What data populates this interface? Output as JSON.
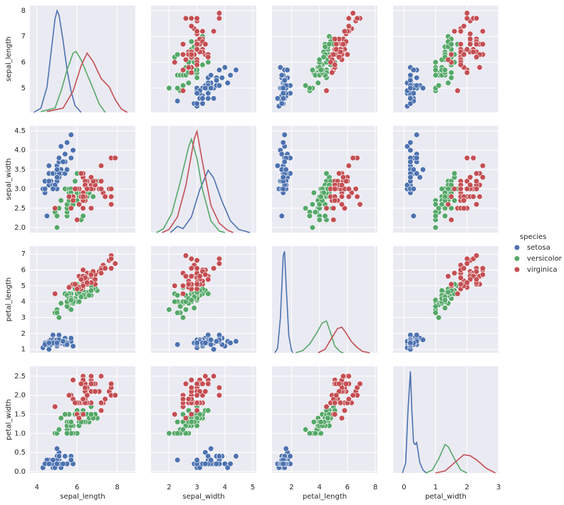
{
  "chart_data": {
    "type": "pairplot",
    "variables": [
      "sepal_length",
      "sepal_width",
      "petal_length",
      "petal_width"
    ],
    "legend_title": "species",
    "grid": true,
    "axes": {
      "sepal_length": {
        "xlim": [
          3.65,
          8.9
        ],
        "xticks": [
          4,
          6,
          8
        ],
        "ylim": [
          4.06,
          8.19
        ],
        "yticks": [
          5,
          6,
          7,
          8
        ],
        "kde_ylim": [
          0,
          1.26
        ]
      },
      "sepal_width": {
        "xlim": [
          1.35,
          5.13
        ],
        "xticks": [
          2,
          3,
          4,
          5
        ],
        "ylim": [
          1.87,
          4.63
        ],
        "yticks": [
          {
            "value": 2,
            "label": "2.0"
          },
          2.5,
          {
            "value": 3,
            "label": "3.0"
          },
          3.5,
          {
            "value": 4,
            "label": "4.0"
          },
          4.5
        ],
        "kde_ylim": [
          0,
          1.37
        ]
      },
      "petal_length": {
        "xlim": [
          0.6,
          8.15
        ],
        "xticks": [
          2,
          4,
          6,
          8
        ],
        "ylim": [
          0.78,
          7.5
        ],
        "yticks": [
          1,
          2,
          3,
          4,
          5,
          6,
          7
        ],
        "kde_ylim": [
          0,
          2.42
        ]
      },
      "petal_width": {
        "xlim": [
          -0.35,
          3.0
        ],
        "xticks": [
          0,
          1,
          2,
          3
        ],
        "ylim": [
          -0.04,
          2.76
        ],
        "yticks": [
          {
            "value": 0,
            "label": "0.0"
          },
          0.5,
          {
            "value": 1,
            "label": "1.0"
          },
          1.5,
          {
            "value": 2,
            "label": "2.0"
          },
          2.5
        ],
        "kde_ylim": [
          0,
          5.25
        ]
      }
    },
    "series": [
      {
        "name": "setosa",
        "color": "#4c72b0",
        "sepal_length": [
          5.1,
          4.9,
          4.7,
          4.6,
          5.0,
          5.4,
          4.6,
          5.0,
          4.4,
          4.9,
          5.4,
          4.8,
          4.8,
          4.3,
          5.8,
          5.7,
          5.4,
          5.1,
          5.7,
          5.1,
          5.4,
          5.1,
          4.6,
          5.1,
          4.8,
          5.0,
          5.0,
          5.2,
          5.2,
          4.7,
          4.8,
          5.4,
          5.2,
          5.5,
          4.9,
          5.0,
          5.5,
          4.9,
          4.4,
          5.1,
          5.0,
          4.5,
          4.4,
          5.0,
          5.1,
          4.8,
          5.1,
          4.6,
          5.3,
          5.0
        ],
        "sepal_width": [
          3.5,
          3.0,
          3.2,
          3.1,
          3.6,
          3.9,
          3.4,
          3.4,
          2.9,
          3.1,
          3.7,
          3.4,
          3.0,
          3.0,
          4.0,
          4.4,
          3.9,
          3.5,
          3.8,
          3.8,
          3.4,
          3.7,
          3.6,
          3.3,
          3.4,
          3.0,
          3.4,
          3.5,
          3.4,
          3.2,
          3.1,
          3.4,
          4.1,
          4.2,
          3.1,
          3.2,
          3.5,
          3.1,
          3.0,
          3.4,
          3.5,
          2.3,
          3.2,
          3.5,
          3.8,
          3.0,
          3.8,
          3.2,
          3.7,
          3.3
        ],
        "petal_length": [
          1.4,
          1.4,
          1.3,
          1.5,
          1.4,
          1.7,
          1.4,
          1.5,
          1.4,
          1.5,
          1.5,
          1.6,
          1.4,
          1.1,
          1.2,
          1.5,
          1.3,
          1.4,
          1.7,
          1.5,
          1.7,
          1.5,
          1.0,
          1.7,
          1.9,
          1.6,
          1.6,
          1.5,
          1.4,
          1.6,
          1.6,
          1.5,
          1.5,
          1.4,
          1.5,
          1.2,
          1.3,
          1.5,
          1.3,
          1.5,
          1.3,
          1.3,
          1.3,
          1.6,
          1.9,
          1.4,
          1.6,
          1.4,
          1.5,
          1.4
        ],
        "petal_width": [
          0.2,
          0.2,
          0.2,
          0.2,
          0.2,
          0.4,
          0.3,
          0.2,
          0.2,
          0.1,
          0.2,
          0.2,
          0.1,
          0.1,
          0.2,
          0.4,
          0.4,
          0.3,
          0.3,
          0.3,
          0.2,
          0.4,
          0.2,
          0.5,
          0.2,
          0.2,
          0.4,
          0.2,
          0.2,
          0.2,
          0.2,
          0.4,
          0.1,
          0.2,
          0.1,
          0.2,
          0.2,
          0.1,
          0.2,
          0.2,
          0.3,
          0.3,
          0.2,
          0.6,
          0.4,
          0.3,
          0.2,
          0.2,
          0.2,
          0.2
        ],
        "kde": {
          "sepal_length": {
            "x": [
              3.85,
              4.2,
              4.5,
              4.7,
              4.9,
              5.0,
              5.1,
              5.3,
              5.5,
              5.7,
              5.9,
              6.2
            ],
            "density": [
              0,
              0.05,
              0.3,
              0.7,
              1.1,
              1.2,
              1.15,
              0.85,
              0.5,
              0.25,
              0.08,
              0
            ]
          },
          "sepal_width": {
            "x": [
              2.05,
              2.3,
              2.5,
              2.8,
              3.1,
              3.4,
              3.6,
              3.9,
              4.2,
              4.5,
              4.9
            ],
            "density": [
              0,
              0.08,
              0.05,
              0.2,
              0.55,
              0.8,
              0.7,
              0.4,
              0.15,
              0.04,
              0
            ]
          },
          "petal_length": {
            "x": [
              0.8,
              1.0,
              1.2,
              1.4,
              1.5,
              1.6,
              1.8,
              2.0,
              2.1
            ],
            "density": [
              0,
              0.1,
              0.8,
              2.2,
              2.3,
              1.6,
              0.4,
              0.05,
              0
            ]
          },
          "petal_width": {
            "x": [
              -0.05,
              0.05,
              0.12,
              0.2,
              0.25,
              0.3,
              0.35,
              0.4,
              0.5,
              0.6,
              0.7
            ],
            "density": [
              0,
              0.5,
              3,
              5,
              3,
              1.5,
              1.4,
              1.5,
              0.5,
              0.15,
              0
            ]
          }
        }
      },
      {
        "name": "versicolor",
        "color": "#55a868",
        "sepal_length": [
          7.0,
          6.4,
          6.9,
          5.5,
          6.5,
          5.7,
          6.3,
          4.9,
          6.6,
          5.2,
          5.0,
          5.9,
          6.0,
          6.1,
          5.6,
          6.7,
          5.6,
          5.8,
          6.2,
          5.6,
          5.9,
          6.1,
          6.3,
          6.1,
          6.4,
          6.6,
          6.8,
          6.7,
          6.0,
          5.7,
          5.5,
          5.5,
          5.8,
          6.0,
          5.4,
          6.0,
          6.7,
          6.3,
          5.6,
          5.5,
          5.5,
          6.1,
          5.8,
          5.0,
          5.6,
          5.7,
          5.7,
          6.2,
          5.1,
          5.7
        ],
        "sepal_width": [
          3.2,
          3.2,
          3.1,
          2.3,
          2.8,
          2.8,
          3.3,
          2.4,
          2.9,
          2.7,
          2.0,
          3.0,
          2.2,
          2.9,
          2.9,
          3.1,
          3.0,
          2.7,
          2.2,
          2.5,
          3.2,
          2.8,
          2.5,
          2.8,
          2.9,
          3.0,
          2.8,
          3.0,
          2.9,
          2.6,
          2.4,
          2.4,
          2.7,
          2.7,
          3.0,
          3.4,
          3.1,
          2.3,
          3.0,
          2.5,
          2.6,
          3.0,
          2.6,
          2.3,
          2.7,
          3.0,
          2.9,
          2.9,
          2.5,
          2.8
        ],
        "petal_length": [
          4.7,
          4.5,
          4.9,
          4.0,
          4.6,
          4.5,
          4.7,
          3.3,
          4.6,
          3.9,
          3.5,
          4.2,
          4.0,
          4.7,
          3.6,
          4.4,
          4.5,
          4.1,
          4.5,
          3.9,
          4.8,
          4.0,
          4.9,
          4.7,
          4.3,
          4.4,
          4.8,
          5.0,
          4.5,
          3.5,
          3.8,
          3.7,
          3.9,
          5.1,
          4.5,
          4.5,
          4.7,
          4.4,
          4.1,
          4.0,
          4.4,
          4.6,
          4.0,
          3.3,
          4.2,
          4.2,
          4.2,
          4.3,
          3.0,
          4.1
        ],
        "petal_width": [
          1.4,
          1.5,
          1.5,
          1.3,
          1.5,
          1.3,
          1.6,
          1.0,
          1.3,
          1.4,
          1.0,
          1.5,
          1.0,
          1.4,
          1.3,
          1.4,
          1.5,
          1.0,
          1.5,
          1.1,
          1.8,
          1.3,
          1.5,
          1.2,
          1.3,
          1.4,
          1.4,
          1.7,
          1.5,
          1.0,
          1.1,
          1.0,
          1.2,
          1.6,
          1.5,
          1.6,
          1.5,
          1.3,
          1.3,
          1.3,
          1.2,
          1.4,
          1.2,
          1.0,
          1.3,
          1.2,
          1.3,
          1.3,
          1.1,
          1.3
        ],
        "kde": {
          "sepal_length": {
            "x": [
              4.2,
              4.9,
              5.2,
              5.5,
              5.8,
              5.95,
              6.2,
              6.5,
              6.8,
              7.1,
              7.4
            ],
            "density": [
              0.01,
              0.05,
              0.25,
              0.5,
              0.7,
              0.72,
              0.62,
              0.45,
              0.28,
              0.1,
              0
            ]
          },
          "sepal_width": {
            "x": [
              1.55,
              1.8,
              2.1,
              2.4,
              2.7,
              2.8,
              3.0,
              3.2,
              3.5,
              3.8,
              4.0
            ],
            "density": [
              0,
              0.05,
              0.25,
              0.65,
              1.1,
              1.2,
              0.95,
              0.55,
              0.15,
              0.02,
              0
            ]
          },
          "petal_length": {
            "x": [
              2.3,
              2.8,
              3.3,
              3.8,
              4.2,
              4.5,
              4.8,
              5.1,
              5.5,
              5.7
            ],
            "density": [
              0,
              0.05,
              0.2,
              0.45,
              0.68,
              0.72,
              0.45,
              0.15,
              0.02,
              0
            ]
          },
          "petal_width": {
            "x": [
              0.7,
              0.9,
              1.1,
              1.3,
              1.4,
              1.6,
              1.8,
              2.0
            ],
            "density": [
              0,
              0.15,
              0.7,
              1.4,
              1.3,
              0.7,
              0.15,
              0
            ]
          }
        }
      },
      {
        "name": "virginica",
        "color": "#c44e52",
        "sepal_length": [
          6.3,
          5.8,
          7.1,
          6.3,
          6.5,
          7.6,
          4.9,
          7.3,
          6.7,
          7.2,
          6.5,
          6.4,
          6.8,
          5.7,
          5.8,
          6.4,
          6.5,
          7.7,
          7.7,
          6.0,
          6.9,
          5.6,
          7.7,
          6.3,
          6.7,
          7.2,
          6.2,
          6.1,
          6.4,
          7.2,
          7.4,
          7.9,
          6.4,
          6.3,
          6.1,
          7.7,
          6.3,
          6.4,
          6.0,
          6.9,
          6.7,
          6.9,
          5.8,
          6.8,
          6.7,
          6.7,
          6.3,
          6.5,
          6.2,
          5.9
        ],
        "sepal_width": [
          3.3,
          2.7,
          3.0,
          2.9,
          3.0,
          3.0,
          2.5,
          2.9,
          2.5,
          3.6,
          3.2,
          2.7,
          3.0,
          2.5,
          2.8,
          3.2,
          3.0,
          3.8,
          2.6,
          2.2,
          3.2,
          2.8,
          2.8,
          2.7,
          3.3,
          3.2,
          2.8,
          3.0,
          2.8,
          3.0,
          2.8,
          3.8,
          2.8,
          2.8,
          2.6,
          3.0,
          3.4,
          3.1,
          3.0,
          3.1,
          3.1,
          3.1,
          2.7,
          3.2,
          3.3,
          3.0,
          2.5,
          3.0,
          3.4,
          3.0
        ],
        "petal_length": [
          6.0,
          5.1,
          5.9,
          5.6,
          5.8,
          6.6,
          4.5,
          6.3,
          5.8,
          6.1,
          5.1,
          5.3,
          5.5,
          5.0,
          5.1,
          5.3,
          5.5,
          6.7,
          6.9,
          5.0,
          5.7,
          4.9,
          6.7,
          4.9,
          5.7,
          6.0,
          4.8,
          4.9,
          5.6,
          5.8,
          6.1,
          6.4,
          5.6,
          5.1,
          5.6,
          6.1,
          5.6,
          5.5,
          4.8,
          5.4,
          5.6,
          5.1,
          5.1,
          5.9,
          5.7,
          5.2,
          5.0,
          5.2,
          5.4,
          5.1
        ],
        "petal_width": [
          2.5,
          1.9,
          2.1,
          1.8,
          2.2,
          2.1,
          1.7,
          1.8,
          1.8,
          2.5,
          2.0,
          1.9,
          2.1,
          2.0,
          2.4,
          2.3,
          1.8,
          2.2,
          2.3,
          1.5,
          2.3,
          2.0,
          2.0,
          1.8,
          2.1,
          1.8,
          1.8,
          1.8,
          2.1,
          1.6,
          1.9,
          2.0,
          2.2,
          1.5,
          1.4,
          2.3,
          2.4,
          1.8,
          1.8,
          2.1,
          2.4,
          2.3,
          1.9,
          2.3,
          2.5,
          2.3,
          1.9,
          2.0,
          2.3,
          1.8
        ],
        "kde": {
          "sepal_length": {
            "x": [
              4.5,
              5.3,
              5.8,
              6.2,
              6.5,
              6.8,
              7.2,
              7.6,
              7.9,
              8.2,
              8.5
            ],
            "density": [
              0.01,
              0.05,
              0.25,
              0.55,
              0.7,
              0.6,
              0.4,
              0.3,
              0.15,
              0.04,
              0
            ]
          },
          "sepal_width": {
            "x": [
              1.75,
              2.0,
              2.3,
              2.6,
              2.9,
              3.0,
              3.2,
              3.5,
              3.8,
              4.1,
              4.3
            ],
            "density": [
              0,
              0.04,
              0.2,
              0.6,
              1.2,
              1.3,
              0.9,
              0.35,
              0.12,
              0.03,
              0
            ]
          },
          "petal_length": {
            "x": [
              3.9,
              4.4,
              4.9,
              5.3,
              5.6,
              5.9,
              6.3,
              6.7,
              7.1,
              7.6
            ],
            "density": [
              0,
              0.08,
              0.35,
              0.55,
              0.58,
              0.45,
              0.25,
              0.12,
              0.03,
              0
            ]
          },
          "petal_width": {
            "x": [
              1.0,
              1.3,
              1.6,
              1.9,
              2.1,
              2.3,
              2.6,
              2.9
            ],
            "density": [
              0,
              0.1,
              0.5,
              0.9,
              0.85,
              0.65,
              0.25,
              0
            ]
          }
        }
      }
    ]
  }
}
